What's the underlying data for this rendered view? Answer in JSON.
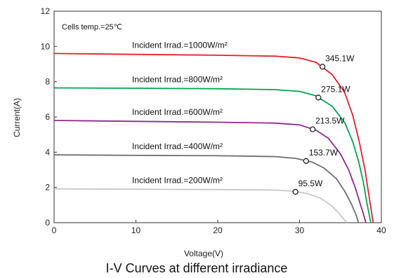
{
  "chart_data": {
    "type": "line",
    "title": "I-V Curves at different irradiance",
    "xlabel": "Voltage(V)",
    "ylabel": "Current(A)",
    "xlim": [
      0,
      40
    ],
    "ylim": [
      0,
      12
    ],
    "xticks": [
      "0",
      "10",
      "20",
      "30",
      "40"
    ],
    "yticks": [
      "0",
      "2",
      "4",
      "6",
      "8",
      "10",
      "12"
    ],
    "grid": false,
    "note": "Cells temp.=25℃",
    "series": [
      {
        "name": "Incident Irrad.=1000W/m²",
        "color": "#e8202a",
        "x": [
          0,
          10,
          20,
          27,
          30,
          32,
          34,
          35.5,
          36.5,
          37.3,
          38,
          38.5,
          38.8,
          39.0
        ],
        "y": [
          9.6,
          9.55,
          9.5,
          9.45,
          9.35,
          9.1,
          8.4,
          7.4,
          6.1,
          4.6,
          3.0,
          1.5,
          0.6,
          0
        ],
        "mpp_label": "345.1W",
        "mpp": [
          32.8,
          8.85
        ]
      },
      {
        "name": "Incident Irrad.=800W/m²",
        "color": "#00a651",
        "x": [
          0,
          10,
          20,
          27,
          30,
          32,
          34,
          35.5,
          36.5,
          37.2,
          37.8,
          38.2,
          38.5,
          38.7
        ],
        "y": [
          7.65,
          7.63,
          7.6,
          7.55,
          7.45,
          7.2,
          6.6,
          5.7,
          4.6,
          3.5,
          2.3,
          1.2,
          0.5,
          0
        ],
        "mpp_label": "275.1W",
        "mpp": [
          32.3,
          7.1
        ]
      },
      {
        "name": "Incident Irrad.=600W/m²",
        "color": "#8e2a8e",
        "x": [
          0,
          10,
          20,
          27,
          30,
          32,
          33.5,
          35,
          36,
          36.8,
          37.4,
          37.8,
          38.1
        ],
        "y": [
          5.8,
          5.75,
          5.7,
          5.65,
          5.55,
          5.25,
          4.8,
          3.9,
          3.0,
          2.0,
          1.1,
          0.5,
          0
        ],
        "mpp_label": "213.5W",
        "mpp": [
          31.6,
          5.3
        ]
      },
      {
        "name": "Incident Irrad.=400W/m²",
        "color": "#6d6e71",
        "x": [
          0,
          10,
          20,
          27,
          29.5,
          31.5,
          33,
          34.5,
          35.5,
          36.3,
          36.9,
          37.2
        ],
        "y": [
          3.85,
          3.82,
          3.8,
          3.75,
          3.65,
          3.45,
          3.1,
          2.5,
          1.8,
          1.1,
          0.45,
          0
        ],
        "mpp_label": "153.7W",
        "mpp": [
          30.8,
          3.5
        ]
      },
      {
        "name": "Incident Irrad.=200W/m²",
        "color": "#c8c8c8",
        "x": [
          0,
          10,
          20,
          27,
          29.5,
          31,
          32.5,
          33.8,
          34.8,
          35.4,
          35.8
        ],
        "y": [
          1.92,
          1.9,
          1.88,
          1.85,
          1.78,
          1.65,
          1.4,
          1.0,
          0.55,
          0.2,
          0
        ],
        "mpp_label": "95.5W",
        "mpp": [
          29.5,
          1.75
        ]
      }
    ]
  }
}
